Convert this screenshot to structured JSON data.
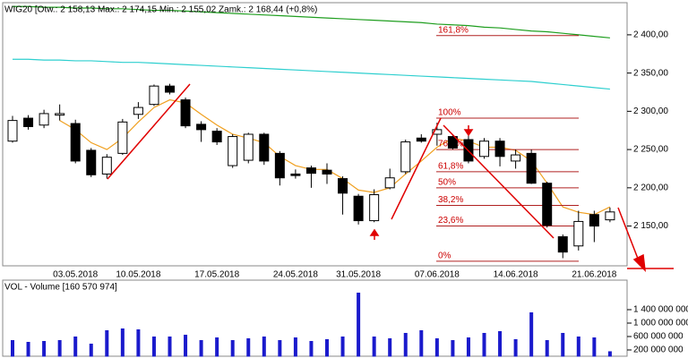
{
  "chart_data": [
    {
      "type": "candlestick",
      "title": "WIG20 [Otw.: 2 158,13  Max.: 2 174,15  Min.: 2 155,02  Zamk.: 2 168,44  (+0,8%)",
      "categories": [
        null,
        null,
        null,
        null,
        "03.05.2018",
        null,
        null,
        null,
        "10.05.2018",
        null,
        null,
        null,
        null,
        "17.05.2018",
        null,
        null,
        null,
        null,
        "24.05.2018",
        null,
        null,
        null,
        "31.05.2018",
        null,
        null,
        null,
        null,
        "07.06.2018",
        null,
        null,
        null,
        null,
        "14.06.2018",
        null,
        null,
        null,
        null,
        "21.06.2018",
        null
      ],
      "open": [
        2261,
        2291,
        2282,
        2295,
        2284,
        2249,
        2218,
        2245,
        2296,
        2309,
        2333,
        2315,
        2283,
        2274,
        2229,
        2236,
        2270,
        2245,
        2218,
        2226,
        2223,
        2212,
        2189,
        2157,
        2200,
        2221,
        2265,
        2270,
        2267,
        2263,
        2241,
        2261,
        2235,
        2245,
        2206,
        2136,
        2124,
        2165,
        2158.13
      ],
      "high": [
        2294,
        2295,
        2302,
        2309,
        2289,
        2252,
        2244,
        2290,
        2312,
        2335,
        2336,
        2318,
        2287,
        2278,
        2270,
        2272,
        2272,
        2248,
        2224,
        2229,
        2232,
        2215,
        2192,
        2198,
        2225,
        2263,
        2270,
        2285,
        2270,
        2270,
        2265,
        2265,
        2250,
        2250,
        2208,
        2139,
        2170,
        2170,
        2174.15
      ],
      "low": [
        2259,
        2276,
        2278,
        2288,
        2232,
        2214,
        2212,
        2243,
        2290,
        2307,
        2322,
        2278,
        2260,
        2256,
        2226,
        2232,
        2230,
        2203,
        2212,
        2200,
        2205,
        2165,
        2152,
        2155,
        2198,
        2218,
        2259,
        2255,
        2250,
        2232,
        2238,
        2228,
        2225,
        2205,
        2148,
        2108,
        2118,
        2129,
        2155.02
      ],
      "close": [
        2288,
        2280,
        2297,
        2297,
        2235,
        2217,
        2240,
        2286,
        2305,
        2333,
        2325,
        2281,
        2276,
        2260,
        2267,
        2270,
        2235,
        2213,
        2216,
        2219,
        2218,
        2193,
        2157,
        2191,
        2213,
        2260,
        2261,
        2276,
        2252,
        2235,
        2261,
        2241,
        2243,
        2206,
        2151,
        2116,
        2156,
        2150,
        2168.44
      ],
      "series": [
        {
          "color": "#1f9e1f",
          "values": [
            2437,
            2437,
            2436,
            2436,
            2435,
            2435,
            2434,
            2434,
            2433,
            2432,
            2432,
            2431,
            2430,
            2429,
            2428,
            2427,
            2426,
            2425,
            2424,
            2423,
            2422,
            2421,
            2420,
            2419,
            2418,
            2417,
            2416,
            2414,
            2413,
            2412,
            2410,
            2409,
            2407,
            2405,
            2404,
            2402,
            2400,
            2398,
            2396
          ]
        },
        {
          "color": "#2ecfcf",
          "values": [
            2368,
            2368,
            2367,
            2367,
            2366,
            2366,
            2365,
            2364,
            2364,
            2363,
            2362,
            2361,
            2360,
            2359,
            2358,
            2357,
            2356,
            2355,
            2354,
            2353,
            2352,
            2351,
            2350,
            2349,
            2348,
            2347,
            2346,
            2345,
            2344,
            2343,
            2342,
            2341,
            2340,
            2339,
            2337,
            2335,
            2333,
            2331,
            2329
          ]
        },
        {
          "color": "#f0a020",
          "values": [
            null,
            null,
            null,
            2288,
            2276,
            2259,
            2250,
            2265,
            2286,
            2305,
            2315,
            2311,
            2296,
            2282,
            2270,
            2265,
            2259,
            2241,
            2229,
            2224,
            2224,
            2212,
            2197,
            2194,
            2200,
            2218,
            2235,
            2253,
            2265,
            2261,
            2253,
            2253,
            2249,
            2235,
            2206,
            2175,
            2168,
            2165,
            2175
          ]
        }
      ],
      "fibonacci": [
        {
          "label": "161,8%",
          "value": 2399
        },
        {
          "label": "100%",
          "value": 2291
        },
        {
          "label": "76,4%",
          "value": 2250
        },
        {
          "label": "61,8%",
          "value": 2221
        },
        {
          "label": "50%",
          "value": 2200
        },
        {
          "label": "38,2%",
          "value": 2177
        },
        {
          "label": "23,6%",
          "value": 2150
        },
        {
          "label": "0%",
          "value": 2104
        }
      ],
      "ylim": [
        2098,
        2442
      ],
      "yticks": [
        {
          "value": 2150,
          "label": "2 150,00"
        },
        {
          "value": 2200,
          "label": "2 200,00"
        },
        {
          "value": 2250,
          "label": "2 250,00"
        },
        {
          "value": 2300,
          "label": "2 300,00"
        },
        {
          "value": 2350,
          "label": "2 350,00"
        },
        {
          "value": 2400,
          "label": "2 400,00"
        }
      ]
    },
    {
      "type": "bar",
      "title": "VOL - Volume [160 570 974]",
      "color": "#1a1acc",
      "values": [
        493000000,
        440000000,
        467000000,
        493000000,
        600000000,
        387000000,
        787000000,
        840000000,
        813000000,
        600000000,
        600000000,
        653000000,
        493000000,
        573000000,
        493000000,
        547000000,
        600000000,
        493000000,
        573000000,
        467000000,
        520000000,
        600000000,
        1907000000,
        600000000,
        547000000,
        707000000,
        787000000,
        547000000,
        493000000,
        573000000,
        707000000,
        760000000,
        520000000,
        1320000000,
        493000000,
        707000000,
        600000000,
        573000000,
        160570974
      ],
      "ylim": [
        0,
        2280000000
      ],
      "yticks": [
        {
          "value": 200000000,
          "label": "200 000 000"
        },
        {
          "value": 600000000,
          "label": "600 000 000"
        },
        {
          "value": 1000000000,
          "label": "1 000 000 000"
        },
        {
          "value": 1400000000,
          "label": "1 400 000 000"
        }
      ]
    }
  ]
}
